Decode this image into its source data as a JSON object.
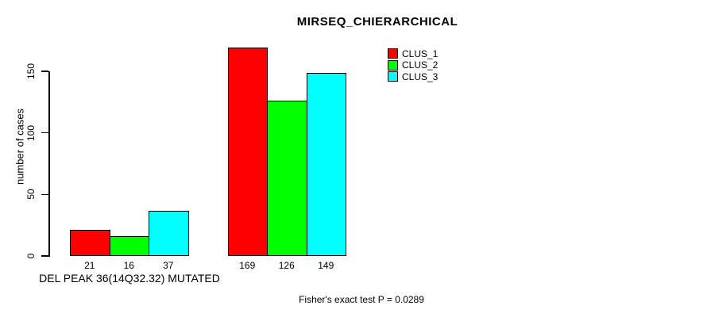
{
  "chart_data": {
    "type": "bar",
    "title": "MIRSEQ_CHIERARCHICAL",
    "ylabel": "number of cases",
    "xlabel": "DEL PEAK 36(14Q32.32) MUTATED",
    "annotation": "Fisher's exact test P = 0.0289",
    "ylim": [
      0,
      150
    ],
    "yticks": [
      0,
      50,
      100,
      150
    ],
    "grid": false,
    "legend_position": "top-right",
    "show_bar_values": true,
    "legend": [
      "CLUS_1",
      "CLUS_2",
      "CLUS_3"
    ],
    "series": [
      {
        "name": "CLUS_1",
        "color": "#ff0000",
        "values": [
          21,
          169
        ]
      },
      {
        "name": "CLUS_2",
        "color": "#00ff00",
        "values": [
          16,
          126
        ]
      },
      {
        "name": "CLUS_3",
        "color": "#00ffff",
        "values": [
          37,
          149
        ]
      }
    ],
    "bar_value_labels": [
      [
        21,
        16,
        37
      ],
      [
        169,
        126,
        149
      ]
    ]
  }
}
